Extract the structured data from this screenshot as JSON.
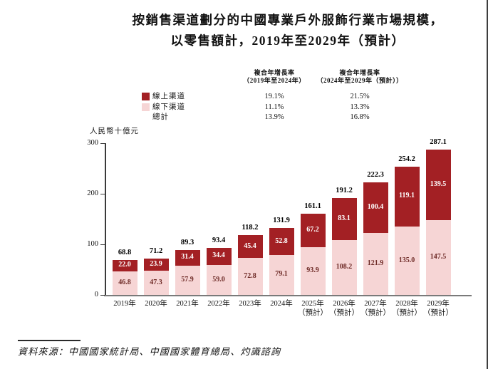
{
  "title": {
    "line1": "按銷售渠道劃分的中國專業戶外服飾行業市場規模，",
    "line2": "以零售額計，2019年至2029年（預計）"
  },
  "cagr": {
    "col1": {
      "line1": "複合年增長率",
      "line2": "（2019年至2024年）"
    },
    "col2": {
      "line1": "複合年增長率",
      "line2": "（2024年至2029年（預計））"
    },
    "rows": [
      {
        "label": "線上渠道",
        "col1": "19.1%",
        "col2": "21.5%"
      },
      {
        "label": "線下渠道",
        "col1": "11.1%",
        "col2": "13.3%"
      },
      {
        "label": "總計",
        "col1": "13.9%",
        "col2": "16.8%"
      }
    ]
  },
  "chart_data": {
    "type": "bar",
    "stacked": true,
    "title": "按銷售渠道劃分的中國專業戶外服飾行業市場規模，以零售額計，2019年至2029年（預計）",
    "unit_label": "人民幣十億元",
    "ylabel": "人民幣十億元",
    "xlabel": "",
    "ylim": [
      0,
      300
    ],
    "yticks": [
      0,
      100,
      200,
      300
    ],
    "grid": false,
    "legend_position": "top-left",
    "categories": [
      {
        "label": "2019年",
        "sublabel": ""
      },
      {
        "label": "2020年",
        "sublabel": ""
      },
      {
        "label": "2021年",
        "sublabel": ""
      },
      {
        "label": "2022年",
        "sublabel": ""
      },
      {
        "label": "2023年",
        "sublabel": ""
      },
      {
        "label": "2024年",
        "sublabel": ""
      },
      {
        "label": "2025年",
        "sublabel": "（預計）"
      },
      {
        "label": "2026年",
        "sublabel": "（預計）"
      },
      {
        "label": "2027年",
        "sublabel": "（預計）"
      },
      {
        "label": "2028年",
        "sublabel": "（預計）"
      },
      {
        "label": "2029年",
        "sublabel": "（預計）"
      }
    ],
    "series": [
      {
        "name": "線上渠道",
        "color": "#a32024",
        "values": [
          22.0,
          23.9,
          31.4,
          34.4,
          45.4,
          52.8,
          67.2,
          83.1,
          100.4,
          119.1,
          139.5
        ]
      },
      {
        "name": "線下渠道",
        "color": "#f6d5d5",
        "values": [
          46.8,
          47.3,
          57.9,
          59.0,
          72.8,
          79.1,
          93.9,
          108.2,
          121.9,
          135.0,
          147.5
        ]
      }
    ],
    "totals": [
      68.8,
      71.2,
      89.3,
      93.4,
      118.2,
      131.9,
      161.1,
      191.2,
      222.3,
      254.2,
      287.1
    ]
  },
  "source": {
    "text": "資料來源：中國國家統計局、中國國家體育總局、灼識諮詢"
  },
  "colors": {
    "online_bar": "#a32024",
    "offline_bar": "#f6d5d5",
    "total_label": "#000000",
    "online_value_label": "#ffffff",
    "offline_value_label": "#6e2b27",
    "axis": "#3a3a3a",
    "baseline": "#7a7a7a",
    "page_border": "#3d3d3d"
  }
}
